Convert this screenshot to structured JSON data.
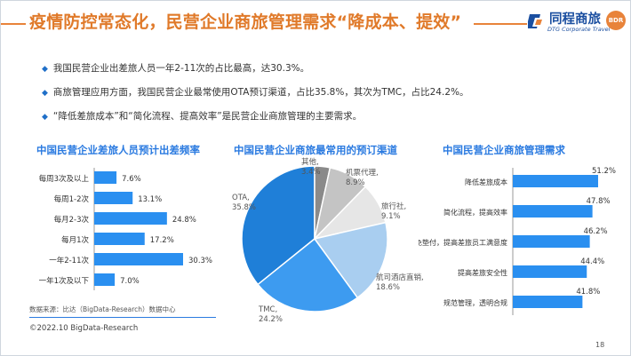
{
  "header": {
    "title": "疫情防控常态化，民营企业商旅管理需求“降成本、提效”",
    "logo_text": "同程商旅",
    "logo_sub": "DTG Corporate Travel",
    "logo_badge": "BDR"
  },
  "bullets": [
    "我国民营企业出差旅人员一年2-11次的占比最高，达30.3%。",
    "商旅管理应用方面，我国民营企业最常使用OTA预订渠道，占比35.8%，其次为TMC，占比24.2%。",
    "“降低差旅成本”和“简化流程、提高效率”是民营企业商旅管理的主要需求。"
  ],
  "colors": {
    "accent": "#e07a2a",
    "bar": "#2a8ff0",
    "title_blue": "#2a7ae0"
  },
  "chart_data": [
    {
      "type": "bar",
      "orientation": "horizontal",
      "title": "中国民营企业差旅人员预计出差频率",
      "categories": [
        "每周3次及以上",
        "每周1-2次",
        "每月2-3次",
        "每月1次",
        "一年2-11次",
        "一年1次及以下"
      ],
      "values": [
        7.6,
        13.1,
        24.8,
        17.2,
        30.3,
        7.0
      ],
      "labels": [
        "7.6%",
        "13.1%",
        "24.8%",
        "17.2%",
        "30.3%",
        "7.0%"
      ]
    },
    {
      "type": "pie",
      "title": "中国民营企业商旅最常用的预订渠道",
      "slices": [
        {
          "label": "OTA,",
          "value": 35.8,
          "text": "35.8%",
          "color": "#1f7fd8"
        },
        {
          "label": "其他,",
          "value": 3.4,
          "text": "3.4%",
          "color": "#8a8a8a"
        },
        {
          "label": "机票代理,",
          "value": 8.9,
          "text": "8.9%",
          "color": "#c4c4c4"
        },
        {
          "label": "旅行社,",
          "value": 9.1,
          "text": "9.1%",
          "color": "#e6e6e6"
        },
        {
          "label": "航司酒店直销,",
          "value": 18.6,
          "text": "18.6%",
          "color": "#a9cef0"
        },
        {
          "label": "TMC,",
          "value": 24.2,
          "text": "24.2%",
          "color": "#3d9bf0"
        }
      ]
    },
    {
      "type": "bar",
      "orientation": "horizontal",
      "title": "中国民营企业商旅管理需求",
      "categories": [
        "降低差旅成本",
        "简化流程，提高效率",
        "免垫付，提高差旅员工满意度",
        "提高差旅安全性",
        "规范管理，透明合规"
      ],
      "values": [
        51.2,
        47.8,
        46.2,
        44.4,
        41.8
      ],
      "labels": [
        "51.2%",
        "47.8%",
        "46.2%",
        "44.4%",
        "41.8%"
      ]
    }
  ],
  "footer": {
    "source": "数据来源：比达（BigData-Research）数据中心",
    "copyright": "©2022.10 BigData-Research",
    "page": "18"
  }
}
